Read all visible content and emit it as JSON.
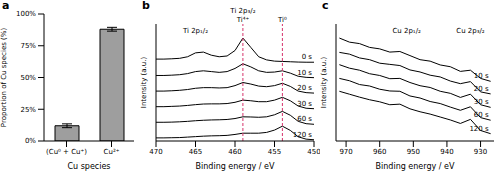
{
  "chart_data": [
    {
      "type": "bar",
      "title": "a",
      "xlabel": "Cu species",
      "ylabel": "Proportion of Cu species (%)",
      "categories": [
        "(Cu⁰ + Cu⁺)",
        "Cu²⁺"
      ],
      "values": [
        12,
        88
      ],
      "errors": [
        1.5,
        1.5
      ],
      "color": "#9e9e9e",
      "ylim": [
        0,
        100
      ],
      "yticks": [
        {
          "value": 0,
          "label": "0%"
        },
        {
          "value": 25,
          "label": "25%"
        },
        {
          "value": 50,
          "label": "50%"
        },
        {
          "value": 75,
          "label": "75%"
        },
        {
          "value": 100,
          "label": "100%"
        }
      ],
      "grid": false
    },
    {
      "type": "line",
      "title": "b",
      "xlabel": "Binding energy / eV",
      "ylabel": "Intensity (a.u.)",
      "x": [
        470,
        469,
        468,
        467,
        466,
        465,
        464,
        463,
        462,
        461,
        460,
        459,
        458,
        457,
        456,
        455,
        454,
        453,
        452,
        451,
        450
      ],
      "xlim": [
        470,
        450
      ],
      "xticks": [
        470,
        465,
        460,
        455,
        450
      ],
      "ylim": [
        0,
        7.5
      ],
      "tick_labels": "x",
      "grid": false,
      "series": [
        {
          "name": "0 s",
          "color": "#000000",
          "values": [
            5.25,
            5.25,
            5.27,
            5.3,
            5.4,
            5.65,
            5.7,
            5.5,
            5.4,
            5.45,
            5.8,
            6.6,
            6.0,
            5.4,
            5.2,
            5.12,
            5.1,
            5.08,
            5.06,
            5.05,
            5.05
          ]
        },
        {
          "name": "10 s",
          "color": "#000000",
          "values": [
            4.2,
            4.2,
            4.22,
            4.25,
            4.32,
            4.45,
            4.5,
            4.45,
            4.4,
            4.45,
            4.65,
            4.95,
            4.75,
            4.5,
            4.4,
            4.42,
            4.5,
            4.35,
            4.15,
            4.08,
            4.06
          ]
        },
        {
          "name": "20 s",
          "color": "#000000",
          "values": [
            3.2,
            3.2,
            3.22,
            3.25,
            3.3,
            3.38,
            3.42,
            3.42,
            3.4,
            3.42,
            3.55,
            3.75,
            3.65,
            3.52,
            3.48,
            3.55,
            3.7,
            3.5,
            3.2,
            3.1,
            3.07
          ]
        },
        {
          "name": "30 s",
          "color": "#000000",
          "values": [
            2.2,
            2.2,
            2.22,
            2.24,
            2.28,
            2.33,
            2.37,
            2.38,
            2.38,
            2.4,
            2.48,
            2.62,
            2.58,
            2.52,
            2.52,
            2.62,
            2.8,
            2.58,
            2.24,
            2.1,
            2.07
          ]
        },
        {
          "name": "60 s",
          "color": "#000000",
          "values": [
            1.2,
            1.2,
            1.21,
            1.23,
            1.26,
            1.3,
            1.33,
            1.35,
            1.36,
            1.38,
            1.44,
            1.55,
            1.54,
            1.52,
            1.55,
            1.68,
            1.9,
            1.65,
            1.26,
            1.11,
            1.07
          ]
        },
        {
          "name": "120 s",
          "color": "#000000",
          "values": [
            0.2,
            0.2,
            0.21,
            0.22,
            0.25,
            0.28,
            0.31,
            0.33,
            0.34,
            0.36,
            0.42,
            0.5,
            0.5,
            0.5,
            0.55,
            0.7,
            0.95,
            0.68,
            0.27,
            0.12,
            0.08
          ]
        }
      ],
      "annotations": [
        {
          "text": "Ti 2p₁/₂",
          "x": 465
        },
        {
          "text": "Ti 2p₃/₂",
          "x": 459
        },
        {
          "text": "Ti⁴⁺",
          "x": 459,
          "line_style": "dashed",
          "color": "#d6336c"
        },
        {
          "text": "Ti⁰",
          "x": 454,
          "line_style": "dashed",
          "color": "#d6336c"
        }
      ]
    },
    {
      "type": "line",
      "title": "c",
      "xlabel": "Binding energy / eV",
      "ylabel": "Intensity (a.u.)",
      "x": [
        972,
        969,
        966,
        963,
        960,
        957,
        954,
        951,
        948,
        945,
        942,
        939,
        936,
        933,
        930,
        927
      ],
      "xlim": [
        973,
        926
      ],
      "xticks": [
        970,
        960,
        950,
        940,
        930
      ],
      "ylim": [
        0,
        4
      ],
      "tick_labels": "x",
      "grid": false,
      "series": [
        {
          "name": "10 s",
          "color": "#000000",
          "values": [
            3.52,
            3.38,
            3.33,
            3.2,
            3.15,
            3.04,
            3.06,
            2.92,
            2.78,
            2.73,
            2.6,
            2.54,
            2.38,
            2.42,
            2.14,
            2.04
          ]
        },
        {
          "name": "20 s",
          "color": "#000000",
          "values": [
            3.03,
            2.97,
            2.84,
            2.78,
            2.66,
            2.62,
            2.58,
            2.43,
            2.36,
            2.25,
            2.19,
            2.05,
            1.96,
            2.03,
            1.68,
            1.61
          ]
        },
        {
          "name": "30 s",
          "color": "#000000",
          "values": [
            2.61,
            2.49,
            2.42,
            2.3,
            2.24,
            2.13,
            2.14,
            2.0,
            1.89,
            1.83,
            1.7,
            1.63,
            1.49,
            1.6,
            1.24,
            1.15
          ]
        },
        {
          "name": "60 s",
          "color": "#000000",
          "values": [
            2.14,
            2.06,
            1.93,
            1.88,
            1.77,
            1.71,
            1.7,
            1.54,
            1.47,
            1.35,
            1.28,
            1.16,
            1.05,
            1.17,
            0.8,
            0.71
          ]
        },
        {
          "name": "120 s",
          "color": "#000000",
          "values": [
            1.7,
            1.6,
            1.5,
            1.41,
            1.34,
            1.24,
            1.26,
            1.1,
            1.0,
            0.92,
            0.82,
            0.72,
            0.6,
            0.74,
            0.36,
            0.25
          ]
        }
      ],
      "annotations": [
        {
          "text": "Cu 2p₁/₂",
          "x": 952
        },
        {
          "text": "Cu 2p₃/₂",
          "x": 933
        }
      ]
    }
  ]
}
